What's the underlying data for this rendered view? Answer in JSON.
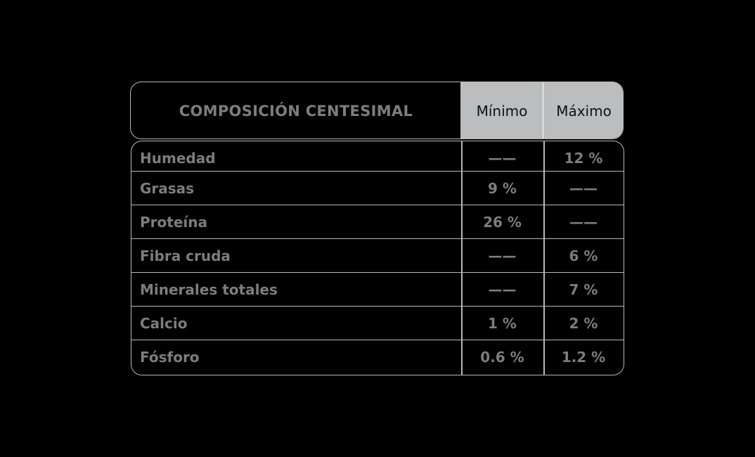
{
  "table": {
    "title": "COMPOSICIÓN CENTESIMAL",
    "col_min": "Mínimo",
    "col_max": "Máximo",
    "rows": [
      {
        "label": "Humedad",
        "min": "——",
        "max": "12 %"
      },
      {
        "label": "Grasas",
        "min": "9 %",
        "max": "——"
      },
      {
        "label": "Proteína",
        "min": "26 %",
        "max": "——"
      },
      {
        "label": "Fibra cruda",
        "min": "——",
        "max": "6 %"
      },
      {
        "label": "Minerales totales",
        "min": "——",
        "max": "7 %"
      },
      {
        "label": "Calcio",
        "min": "1 %",
        "max": "2 %"
      },
      {
        "label": "Fósforo",
        "min": "0.6 %",
        "max": "1.2 %"
      }
    ]
  }
}
